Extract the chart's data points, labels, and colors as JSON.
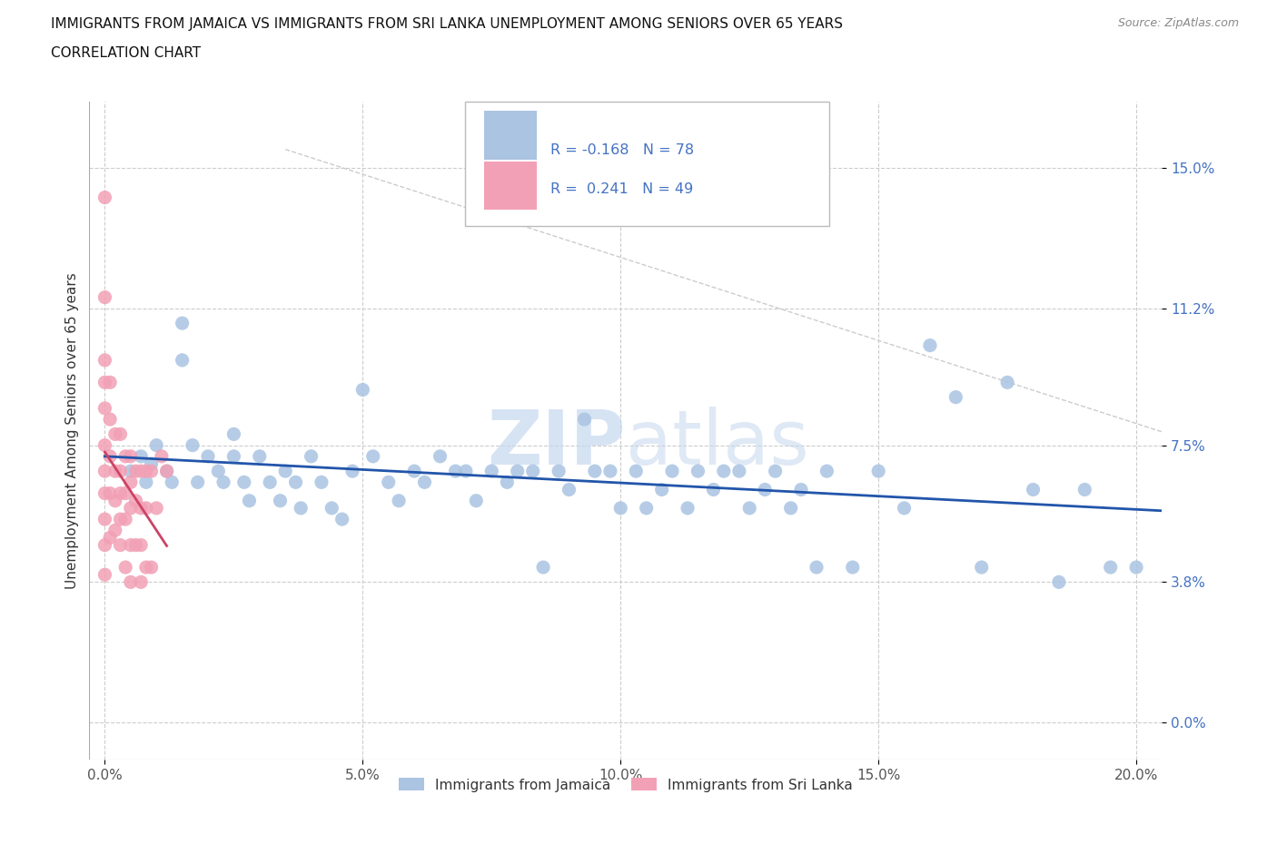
{
  "title_line1": "IMMIGRANTS FROM JAMAICA VS IMMIGRANTS FROM SRI LANKA UNEMPLOYMENT AMONG SENIORS OVER 65 YEARS",
  "title_line2": "CORRELATION CHART",
  "source": "Source: ZipAtlas.com",
  "ylabel": "Unemployment Among Seniors over 65 years",
  "xlim": [
    -0.003,
    0.205
  ],
  "ylim": [
    -0.01,
    0.168
  ],
  "yticks": [
    0.0,
    0.038,
    0.075,
    0.112,
    0.15
  ],
  "ytick_labels": [
    "0.0%",
    "3.8%",
    "7.5%",
    "11.2%",
    "15.0%"
  ],
  "xticks": [
    0.0,
    0.05,
    0.1,
    0.15,
    0.2
  ],
  "xtick_labels": [
    "0.0%",
    "5.0%",
    "10.0%",
    "15.0%",
    "20.0%"
  ],
  "jamaica_color": "#aac4e2",
  "srilanka_color": "#f2a0b5",
  "jamaica_line_color": "#2255aa",
  "srilanka_line_color": "#cc4466",
  "R_jamaica": -0.168,
  "N_jamaica": 78,
  "R_srilanka": 0.241,
  "N_srilanka": 49,
  "legend_label_jamaica": "Immigrants from Jamaica",
  "legend_label_srilanka": "Immigrants from Sri Lanka",
  "watermark_zip": "ZIP",
  "watermark_atlas": "atlas",
  "jamaica_x": [
    0.005,
    0.007,
    0.008,
    0.009,
    0.01,
    0.012,
    0.013,
    0.015,
    0.015,
    0.017,
    0.018,
    0.02,
    0.022,
    0.023,
    0.025,
    0.025,
    0.027,
    0.028,
    0.03,
    0.032,
    0.034,
    0.035,
    0.037,
    0.038,
    0.04,
    0.042,
    0.044,
    0.046,
    0.048,
    0.05,
    0.052,
    0.055,
    0.057,
    0.06,
    0.062,
    0.065,
    0.068,
    0.07,
    0.072,
    0.075,
    0.078,
    0.08,
    0.083,
    0.085,
    0.088,
    0.09,
    0.093,
    0.095,
    0.098,
    0.1,
    0.103,
    0.105,
    0.108,
    0.11,
    0.113,
    0.115,
    0.118,
    0.12,
    0.123,
    0.125,
    0.128,
    0.13,
    0.133,
    0.135,
    0.138,
    0.14,
    0.145,
    0.15,
    0.155,
    0.16,
    0.165,
    0.17,
    0.175,
    0.18,
    0.185,
    0.19,
    0.195,
    0.2
  ],
  "jamaica_y": [
    0.068,
    0.072,
    0.065,
    0.07,
    0.075,
    0.068,
    0.065,
    0.108,
    0.098,
    0.075,
    0.065,
    0.072,
    0.068,
    0.065,
    0.072,
    0.078,
    0.065,
    0.06,
    0.072,
    0.065,
    0.06,
    0.068,
    0.065,
    0.058,
    0.072,
    0.065,
    0.058,
    0.055,
    0.068,
    0.09,
    0.072,
    0.065,
    0.06,
    0.068,
    0.065,
    0.072,
    0.068,
    0.068,
    0.06,
    0.068,
    0.065,
    0.068,
    0.068,
    0.042,
    0.068,
    0.063,
    0.082,
    0.068,
    0.068,
    0.058,
    0.068,
    0.058,
    0.063,
    0.068,
    0.058,
    0.068,
    0.063,
    0.068,
    0.068,
    0.058,
    0.063,
    0.068,
    0.058,
    0.063,
    0.042,
    0.068,
    0.042,
    0.068,
    0.058,
    0.102,
    0.088,
    0.042,
    0.092,
    0.063,
    0.038,
    0.063,
    0.042,
    0.042
  ],
  "srilanka_x": [
    0.0,
    0.0,
    0.0,
    0.0,
    0.0,
    0.0,
    0.0,
    0.0,
    0.0,
    0.0,
    0.0,
    0.001,
    0.001,
    0.001,
    0.001,
    0.001,
    0.002,
    0.002,
    0.002,
    0.002,
    0.003,
    0.003,
    0.003,
    0.003,
    0.003,
    0.004,
    0.004,
    0.004,
    0.004,
    0.005,
    0.005,
    0.005,
    0.005,
    0.005,
    0.006,
    0.006,
    0.006,
    0.007,
    0.007,
    0.007,
    0.007,
    0.008,
    0.008,
    0.008,
    0.009,
    0.009,
    0.01,
    0.011,
    0.012
  ],
  "srilanka_y": [
    0.142,
    0.115,
    0.098,
    0.092,
    0.085,
    0.075,
    0.068,
    0.062,
    0.055,
    0.048,
    0.04,
    0.092,
    0.082,
    0.072,
    0.062,
    0.05,
    0.078,
    0.068,
    0.06,
    0.052,
    0.078,
    0.068,
    0.062,
    0.055,
    0.048,
    0.072,
    0.062,
    0.055,
    0.042,
    0.072,
    0.065,
    0.058,
    0.048,
    0.038,
    0.068,
    0.06,
    0.048,
    0.068,
    0.058,
    0.048,
    0.038,
    0.068,
    0.058,
    0.042,
    0.068,
    0.042,
    0.058,
    0.072,
    0.068
  ]
}
